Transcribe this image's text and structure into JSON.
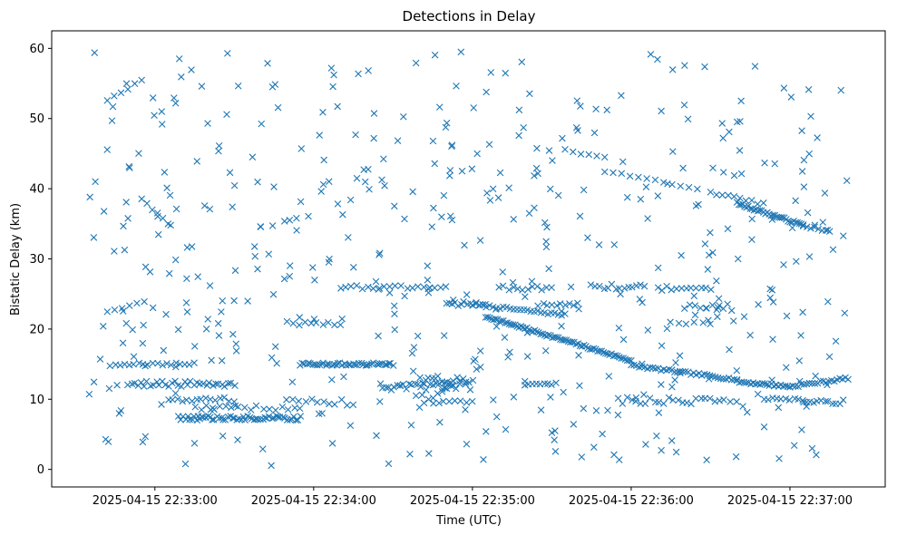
{
  "chart_data": {
    "type": "scatter",
    "title": "Detections in Delay",
    "xlabel": "Time (UTC)",
    "ylabel": "Bistatic Delay (km)",
    "x_ticks": [
      {
        "value": "2025-04-15 22:33:00",
        "label": "2025-04-15 22:33:00"
      },
      {
        "value": "2025-04-15 22:34:00",
        "label": "2025-04-15 22:34:00"
      },
      {
        "value": "2025-04-15 22:35:00",
        "label": "2025-04-15 22:35:00"
      },
      {
        "value": "2025-04-15 22:36:00",
        "label": "2025-04-15 22:36:00"
      },
      {
        "value": "2025-04-15 22:37:00",
        "label": "2025-04-15 22:37:00"
      }
    ],
    "y_ticks": [
      0,
      10,
      20,
      30,
      40,
      50,
      60
    ],
    "xlim": [
      "2025-04-15 22:32:21",
      "2025-04-15 22:37:36"
    ],
    "ylim": [
      -2.5,
      62.5
    ],
    "marker": "x",
    "color": "#1f77b4",
    "grid": false,
    "series": [
      {
        "tracks": [
          {
            "t0": "2025-04-15 22:35:00",
            "t1": "2025-04-15 22:35:35",
            "y0": 23.5,
            "y1": 22.0,
            "n": 28
          },
          {
            "t0": "2025-04-15 22:35:05",
            "t1": "2025-04-15 22:36:00",
            "y0": 21.8,
            "y1": 15.5,
            "n": 75
          },
          {
            "t0": "2025-04-15 22:36:00",
            "t1": "2025-04-15 22:36:40",
            "y0": 14.8,
            "y1": 12.8,
            "n": 40
          },
          {
            "t0": "2025-04-15 22:36:40",
            "t1": "2025-04-15 22:37:00",
            "y0": 12.5,
            "y1": 11.8,
            "n": 24
          },
          {
            "t0": "2025-04-15 22:37:00",
            "t1": "2025-04-15 22:37:22",
            "y0": 11.8,
            "y1": 13.0,
            "n": 22
          },
          {
            "t0": "2025-04-15 22:36:40",
            "t1": "2025-04-15 22:37:05",
            "y0": 37.9,
            "y1": 34.8,
            "n": 36
          },
          {
            "t0": "2025-04-15 22:37:05",
            "t1": "2025-04-15 22:37:15",
            "y0": 34.8,
            "y1": 33.8,
            "n": 8
          },
          {
            "t0": "2025-04-15 22:36:30",
            "t1": "2025-04-15 22:36:50",
            "y0": 39.5,
            "y1": 37.8,
            "n": 10
          },
          {
            "t0": "2025-04-15 22:35:50",
            "t1": "2025-04-15 22:36:25",
            "y0": 42.5,
            "y1": 40.0,
            "n": 12
          },
          {
            "t0": "2025-04-15 22:32:42",
            "t1": "2025-04-15 22:32:55",
            "y0": 52.5,
            "y1": 55.5,
            "n": 6
          },
          {
            "t0": "2025-04-15 22:32:55",
            "t1": "2025-04-15 22:33:05",
            "y0": 38.5,
            "y1": 35.0,
            "n": 6
          },
          {
            "t0": "2025-04-15 22:32:42",
            "t1": "2025-04-15 22:32:56",
            "y0": 22.5,
            "y1": 24.0,
            "n": 6
          },
          {
            "t0": "2025-04-15 22:33:40",
            "t1": "2025-04-15 22:33:58",
            "y0": 34.5,
            "y1": 36.0,
            "n": 5
          },
          {
            "t0": "2025-04-15 22:34:40",
            "t1": "2025-04-15 22:34:52",
            "y0": 9.0,
            "y1": 12.0,
            "n": 8
          },
          {
            "t0": "2025-04-15 22:35:35",
            "t1": "2025-04-15 22:35:50",
            "y0": 45.5,
            "y1": 44.5,
            "n": 6
          }
        ],
        "clusters": [
          {
            "t0": "2025-04-15 22:32:45",
            "t1": "2025-04-15 22:33:15",
            "y": 15.0,
            "n": 18,
            "jitter": 0.2
          },
          {
            "t0": "2025-04-15 22:32:50",
            "t1": "2025-04-15 22:33:30",
            "y": 12.2,
            "n": 35,
            "jitter": 0.4
          },
          {
            "t0": "2025-04-15 22:33:05",
            "t1": "2025-04-15 22:33:30",
            "y": 10.0,
            "n": 15,
            "jitter": 0.4
          },
          {
            "t0": "2025-04-15 22:33:10",
            "t1": "2025-04-15 22:33:55",
            "y": 7.3,
            "n": 55,
            "jitter": 0.3
          },
          {
            "t0": "2025-04-15 22:33:15",
            "t1": "2025-04-15 22:33:55",
            "y": 8.8,
            "n": 18,
            "jitter": 0.4
          },
          {
            "t0": "2025-04-15 22:33:50",
            "t1": "2025-04-15 22:34:15",
            "y": 9.6,
            "n": 12,
            "jitter": 0.5
          },
          {
            "t0": "2025-04-15 22:33:55",
            "t1": "2025-04-15 22:34:30",
            "y": 15.0,
            "n": 45,
            "jitter": 0.2
          },
          {
            "t0": "2025-04-15 22:33:50",
            "t1": "2025-04-15 22:34:10",
            "y": 20.8,
            "n": 10,
            "jitter": 0.3
          },
          {
            "t0": "2025-04-15 22:34:10",
            "t1": "2025-04-15 22:34:50",
            "y": 26.0,
            "n": 20,
            "jitter": 0.3
          },
          {
            "t0": "2025-04-15 22:34:25",
            "t1": "2025-04-15 22:34:55",
            "y": 11.8,
            "n": 28,
            "jitter": 0.5
          },
          {
            "t0": "2025-04-15 22:34:40",
            "t1": "2025-04-15 22:35:00",
            "y": 12.8,
            "n": 18,
            "jitter": 0.5
          },
          {
            "t0": "2025-04-15 22:34:45",
            "t1": "2025-04-15 22:35:00",
            "y": 9.6,
            "n": 8,
            "jitter": 0.2
          },
          {
            "t0": "2025-04-15 22:34:50",
            "t1": "2025-04-15 22:35:05",
            "y": 23.6,
            "n": 14,
            "jitter": 0.3
          },
          {
            "t0": "2025-04-15 22:35:10",
            "t1": "2025-04-15 22:35:30",
            "y": 25.8,
            "n": 12,
            "jitter": 0.4
          },
          {
            "t0": "2025-04-15 22:35:20",
            "t1": "2025-04-15 22:35:30",
            "y": 12.2,
            "n": 8,
            "jitter": 0.2
          },
          {
            "t0": "2025-04-15 22:35:25",
            "t1": "2025-04-15 22:35:40",
            "y": 23.5,
            "n": 10,
            "jitter": 0.2
          },
          {
            "t0": "2025-04-15 22:35:45",
            "t1": "2025-04-15 22:36:05",
            "y": 26.0,
            "n": 14,
            "jitter": 0.4
          },
          {
            "t0": "2025-04-15 22:35:55",
            "t1": "2025-04-15 22:36:35",
            "y": 9.8,
            "n": 24,
            "jitter": 0.5
          },
          {
            "t0": "2025-04-15 22:36:10",
            "t1": "2025-04-15 22:36:30",
            "y": 25.8,
            "n": 12,
            "jitter": 0.3
          },
          {
            "t0": "2025-04-15 22:36:20",
            "t1": "2025-04-15 22:36:35",
            "y": 23.2,
            "n": 8,
            "jitter": 0.3
          },
          {
            "t0": "2025-04-15 22:36:15",
            "t1": "2025-04-15 22:36:30",
            "y": 20.8,
            "n": 6,
            "jitter": 0.2
          },
          {
            "t0": "2025-04-15 22:36:50",
            "t1": "2025-04-15 22:37:05",
            "y": 10.2,
            "n": 10,
            "jitter": 0.4
          },
          {
            "t0": "2025-04-15 22:37:05",
            "t1": "2025-04-15 22:37:20",
            "y": 9.6,
            "n": 12,
            "jitter": 0.3
          }
        ],
        "scatter": {
          "t0": "2025-04-15 22:32:35",
          "t1": "2025-04-15 22:37:22",
          "y0": 0.5,
          "y1": 59.5,
          "n": 480,
          "seed": 7
        }
      }
    ]
  }
}
